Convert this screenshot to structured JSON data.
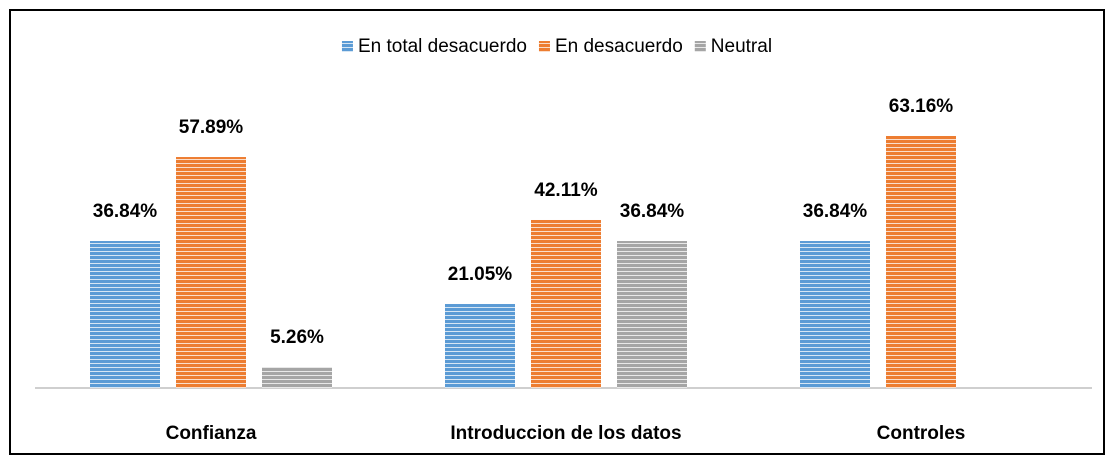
{
  "chart_data": {
    "type": "bar",
    "categories": [
      "Confianza",
      "Introduccion de los datos",
      "Controles"
    ],
    "series": [
      {
        "name": "En total desacuerdo",
        "color": "#5b9bd5",
        "values": [
          36.84,
          21.05,
          36.84
        ],
        "value_labels": [
          "36.84%",
          "21.05%",
          "36.84%"
        ]
      },
      {
        "name": "En desacuerdo",
        "color": "#ed7d31",
        "values": [
          57.89,
          42.11,
          63.16
        ],
        "value_labels": [
          "57.89%",
          "42.11%",
          "63.16%"
        ]
      },
      {
        "name": "Neutral",
        "color": "#a5a5a5",
        "values": [
          5.26,
          36.84,
          null
        ],
        "value_labels": [
          "5.26%",
          "36.84%",
          null
        ]
      }
    ],
    "legend": "top"
  }
}
